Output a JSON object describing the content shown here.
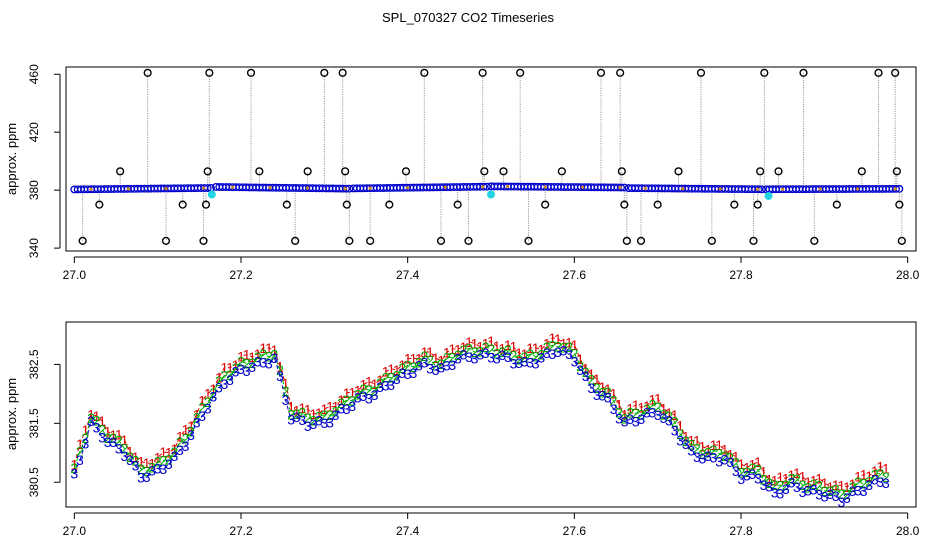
{
  "title": "SPL_070327  CO2 Timeseries",
  "colors": {
    "frame": "#000000",
    "raw_line": "#9a9a9a",
    "raw_point": "#000000",
    "series_1": "#dd0000",
    "series_2": "#00aa00",
    "series_3": "#0000cc",
    "calibration": "#22d3e6"
  },
  "chart_data": [
    {
      "id": "top",
      "type": "scatter",
      "ylabel": "approx. ppm",
      "xlim": [
        26.99,
        28.01
      ],
      "ylim": [
        338,
        465
      ],
      "xticks": [
        27.0,
        27.2,
        27.4,
        27.6,
        27.8,
        28.0
      ],
      "xtick_labels": [
        "27.0",
        "27.2",
        "27.4",
        "27.6",
        "27.8",
        "28.0"
      ],
      "yticks": [
        340,
        380,
        420,
        460
      ],
      "ytick_labels": [
        "340",
        "380",
        "420",
        "460"
      ],
      "baseline_segments": [
        {
          "x0": 27.0,
          "x1": 27.165,
          "y0": 380.5,
          "y1": 381.5
        },
        {
          "x0": 27.17,
          "x1": 27.33,
          "y0": 382.2,
          "y1": 381.0
        },
        {
          "x0": 27.335,
          "x1": 27.495,
          "y0": 381.2,
          "y1": 382.4
        },
        {
          "x0": 27.5,
          "x1": 27.66,
          "y0": 382.6,
          "y1": 381.8
        },
        {
          "x0": 27.665,
          "x1": 27.825,
          "y0": 381.4,
          "y1": 380.6
        },
        {
          "x0": 27.83,
          "x1": 27.99,
          "y0": 380.6,
          "y1": 380.9
        }
      ],
      "spikes": [
        {
          "x": 27.01,
          "y": 345
        },
        {
          "x": 27.03,
          "y": 370
        },
        {
          "x": 27.055,
          "y": 393
        },
        {
          "x": 27.088,
          "y": 461
        },
        {
          "x": 27.11,
          "y": 345
        },
        {
          "x": 27.13,
          "y": 370
        },
        {
          "x": 27.155,
          "y": 345
        },
        {
          "x": 27.158,
          "y": 370
        },
        {
          "x": 27.16,
          "y": 393
        },
        {
          "x": 27.162,
          "y": 461
        },
        {
          "x": 27.212,
          "y": 461
        },
        {
          "x": 27.222,
          "y": 393
        },
        {
          "x": 27.255,
          "y": 370
        },
        {
          "x": 27.265,
          "y": 345
        },
        {
          "x": 27.28,
          "y": 393
        },
        {
          "x": 27.3,
          "y": 461
        },
        {
          "x": 27.322,
          "y": 461
        },
        {
          "x": 27.325,
          "y": 393
        },
        {
          "x": 27.327,
          "y": 370
        },
        {
          "x": 27.33,
          "y": 345
        },
        {
          "x": 27.355,
          "y": 345
        },
        {
          "x": 27.378,
          "y": 370
        },
        {
          "x": 27.398,
          "y": 393
        },
        {
          "x": 27.42,
          "y": 461
        },
        {
          "x": 27.44,
          "y": 345
        },
        {
          "x": 27.46,
          "y": 370
        },
        {
          "x": 27.473,
          "y": 345
        },
        {
          "x": 27.49,
          "y": 461
        },
        {
          "x": 27.492,
          "y": 393
        },
        {
          "x": 27.515,
          "y": 393
        },
        {
          "x": 27.535,
          "y": 461
        },
        {
          "x": 27.545,
          "y": 345
        },
        {
          "x": 27.565,
          "y": 370
        },
        {
          "x": 27.585,
          "y": 393
        },
        {
          "x": 27.632,
          "y": 461
        },
        {
          "x": 27.655,
          "y": 461
        },
        {
          "x": 27.657,
          "y": 393
        },
        {
          "x": 27.66,
          "y": 370
        },
        {
          "x": 27.663,
          "y": 345
        },
        {
          "x": 27.68,
          "y": 345
        },
        {
          "x": 27.7,
          "y": 370
        },
        {
          "x": 27.725,
          "y": 393
        },
        {
          "x": 27.752,
          "y": 461
        },
        {
          "x": 27.765,
          "y": 345
        },
        {
          "x": 27.792,
          "y": 370
        },
        {
          "x": 27.815,
          "y": 345
        },
        {
          "x": 27.82,
          "y": 370
        },
        {
          "x": 27.823,
          "y": 393
        },
        {
          "x": 27.828,
          "y": 461
        },
        {
          "x": 27.845,
          "y": 393
        },
        {
          "x": 27.875,
          "y": 461
        },
        {
          "x": 27.888,
          "y": 345
        },
        {
          "x": 27.915,
          "y": 370
        },
        {
          "x": 27.945,
          "y": 393
        },
        {
          "x": 27.965,
          "y": 461
        },
        {
          "x": 27.985,
          "y": 461
        },
        {
          "x": 27.987,
          "y": 393
        },
        {
          "x": 27.99,
          "y": 370
        },
        {
          "x": 27.993,
          "y": 345
        }
      ],
      "calibration_points": [
        {
          "x": 27.165,
          "y": 377
        },
        {
          "x": 27.5,
          "y": 377
        },
        {
          "x": 27.833,
          "y": 376
        }
      ]
    },
    {
      "id": "bottom",
      "type": "line",
      "ylabel": "approx. ppm",
      "xlim": [
        26.99,
        28.01
      ],
      "ylim": [
        380.08,
        383.22
      ],
      "xticks": [
        27.0,
        27.2,
        27.4,
        27.6,
        27.8,
        28.0
      ],
      "xtick_labels": [
        "27.0",
        "27.2",
        "27.4",
        "27.6",
        "27.8",
        "28.0"
      ],
      "yticks": [
        380.5,
        381.5,
        382.5
      ],
      "ytick_labels": [
        "380.5",
        "381.5",
        "382.5"
      ],
      "series": [
        {
          "name": "1",
          "marker": "1",
          "offset": 0.2
        },
        {
          "name": "2",
          "marker": "2",
          "offset": 0.1
        },
        {
          "name": "3",
          "marker": "3",
          "offset": 0.0
        }
      ],
      "series3_x": [
        27.0,
        27.02,
        27.04,
        27.06,
        27.08,
        27.1,
        27.12,
        27.14,
        27.16,
        27.18,
        27.2,
        27.22,
        27.24,
        27.26,
        27.28,
        27.3,
        27.32,
        27.34,
        27.36,
        27.38,
        27.4,
        27.42,
        27.44,
        27.46,
        27.48,
        27.5,
        27.52,
        27.54,
        27.56,
        27.58,
        27.6,
        27.62,
        27.64,
        27.66,
        27.68,
        27.7,
        27.72,
        27.74,
        27.76,
        27.78,
        27.8,
        27.82,
        27.84,
        27.86,
        27.88,
        27.9,
        27.92,
        27.94,
        27.96,
        27.98
      ],
      "series3_y": [
        380.6,
        381.5,
        381.2,
        381.0,
        380.6,
        380.7,
        380.9,
        381.3,
        381.8,
        382.2,
        382.4,
        382.5,
        382.6,
        381.6,
        381.5,
        381.5,
        381.7,
        381.9,
        382.0,
        382.2,
        382.35,
        382.5,
        382.4,
        382.6,
        382.65,
        382.65,
        382.6,
        382.5,
        382.6,
        382.75,
        382.6,
        382.1,
        381.9,
        381.5,
        381.6,
        381.7,
        381.4,
        381.0,
        380.9,
        380.9,
        380.6,
        380.6,
        380.3,
        380.45,
        380.35,
        380.3,
        380.2,
        380.35,
        380.5,
        380.55
      ]
    }
  ]
}
